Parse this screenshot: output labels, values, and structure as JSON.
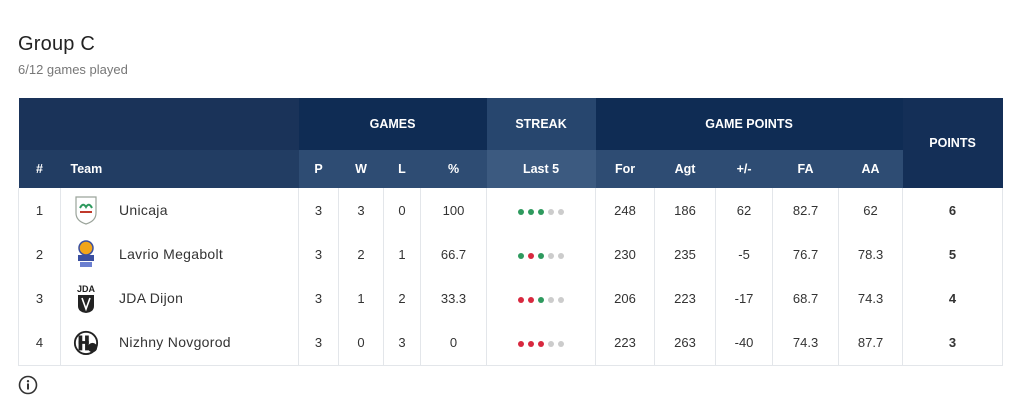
{
  "group": {
    "title": "Group C",
    "subtitle": "6/12 games played"
  },
  "colors": {
    "win": "#2e9a5e",
    "loss": "#d8293f",
    "empty": "#cccccc"
  },
  "headers": {
    "games": "GAMES",
    "streak": "STREAK",
    "game_points": "GAME POINTS",
    "points": "POINTS",
    "rank": "#",
    "team": "Team",
    "p": "P",
    "w": "W",
    "l": "L",
    "pct": "%",
    "last5": "Last 5",
    "for": "For",
    "agt": "Agt",
    "diff": "+/-",
    "fa": "FA",
    "aa": "AA"
  },
  "rows": [
    {
      "rank": "1",
      "team": "Unicaja",
      "logo": "unicaja-logo",
      "p": "3",
      "w": "3",
      "l": "0",
      "pct": "100",
      "streak": [
        "W",
        "W",
        "W",
        "-",
        "-"
      ],
      "for": "248",
      "agt": "186",
      "diff": "62",
      "fa": "82.7",
      "aa": "62",
      "points": "6"
    },
    {
      "rank": "2",
      "team": "Lavrio Megabolt",
      "logo": "lavrio-logo",
      "p": "3",
      "w": "2",
      "l": "1",
      "pct": "66.7",
      "streak": [
        "W",
        "L",
        "W",
        "-",
        "-"
      ],
      "for": "230",
      "agt": "235",
      "diff": "-5",
      "fa": "76.7",
      "aa": "78.3",
      "points": "5"
    },
    {
      "rank": "3",
      "team": "JDA Dijon",
      "logo": "jda-dijon-logo",
      "p": "3",
      "w": "1",
      "l": "2",
      "pct": "33.3",
      "streak": [
        "L",
        "L",
        "W",
        "-",
        "-"
      ],
      "for": "206",
      "agt": "223",
      "diff": "-17",
      "fa": "68.7",
      "aa": "74.3",
      "points": "4"
    },
    {
      "rank": "4",
      "team": "Nizhny Novgorod",
      "logo": "nizhny-logo",
      "p": "3",
      "w": "0",
      "l": "3",
      "pct": "0",
      "streak": [
        "L",
        "L",
        "L",
        "-",
        "-"
      ],
      "for": "223",
      "agt": "263",
      "diff": "-40",
      "fa": "74.3",
      "aa": "87.7",
      "points": "3"
    }
  ]
}
